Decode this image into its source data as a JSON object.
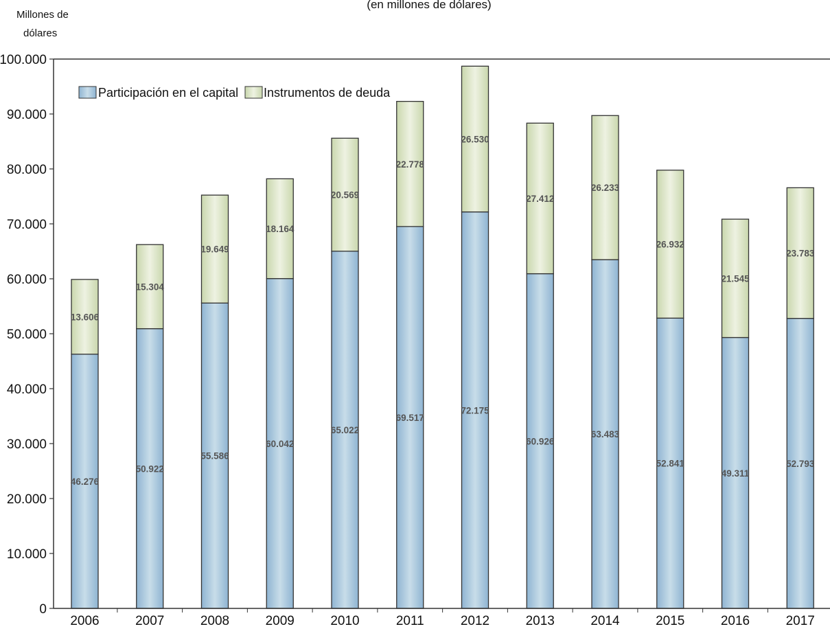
{
  "chart_data": {
    "type": "bar",
    "stacked": true,
    "title": "(en millones de dólares)",
    "ylabel": "Millones de dólares",
    "ylabel_lines": [
      "Millones de",
      "dólares"
    ],
    "xlabel": "",
    "ylim": [
      0,
      100000
    ],
    "yticks": [
      0,
      10000,
      20000,
      30000,
      40000,
      50000,
      60000,
      70000,
      80000,
      90000,
      100000
    ],
    "ytick_labels": [
      "0",
      "10.000",
      "20.000",
      "30.000",
      "40.000",
      "50.000",
      "60.000",
      "70.000",
      "80.000",
      "90.000",
      "100.000"
    ],
    "grid": false,
    "legend_position": "top-left",
    "categories": [
      "2006",
      "2007",
      "2008",
      "2009",
      "2010",
      "2011",
      "2012",
      "2013",
      "2014",
      "2015",
      "2016",
      "2017"
    ],
    "series": [
      {
        "name": "Participación en el capital",
        "color": "#9cc1dd",
        "values": [
          46276,
          50922,
          55586,
          60042,
          65022,
          69517,
          72175,
          60926,
          63483,
          52841,
          49311,
          52793
        ],
        "labels": [
          "46.276",
          "50.922",
          "55.586",
          "60.042",
          "65.022",
          "69.517",
          "72.175",
          "60.926",
          "63.483",
          "52.841",
          "49.311",
          "52.793"
        ]
      },
      {
        "name": "Instrumentos de deuda",
        "color": "#d3dfbb",
        "values": [
          13606,
          15304,
          19649,
          18164,
          20569,
          22778,
          26530,
          27412,
          26233,
          26932,
          21545,
          23783
        ],
        "labels": [
          "13.606",
          "15.304",
          "19.649",
          "18.164",
          "20.569",
          "22.778",
          "26.530",
          "27.412",
          "26.233",
          "26.932",
          "21.545",
          "23.783"
        ]
      }
    ]
  }
}
